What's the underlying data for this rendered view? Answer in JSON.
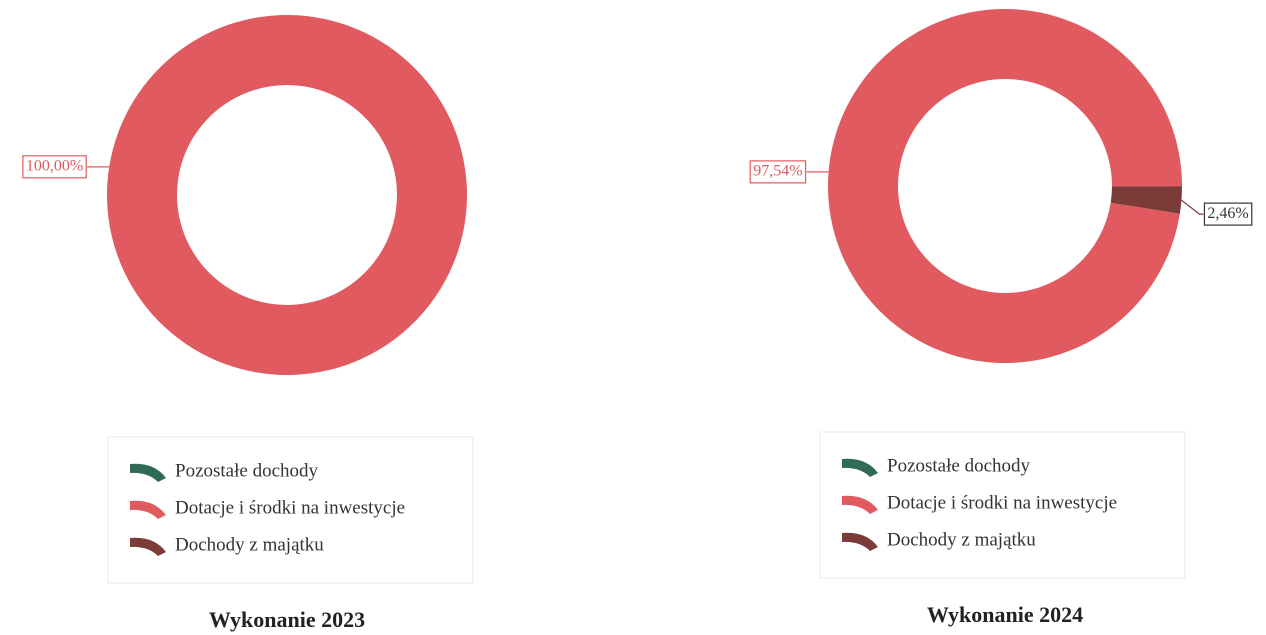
{
  "chart_data": [
    {
      "type": "donut",
      "title": "Wykonanie 2023",
      "categories": [
        "Pozostałe dochody",
        "Dotacje i środki na inwestycje",
        "Dochody z majątku"
      ],
      "values": [
        0,
        100,
        0
      ],
      "value_labels": [
        null,
        "100,00%",
        null
      ],
      "colors": [
        "#2f6b55",
        "#e05a5f",
        "#7b3c39"
      ]
    },
    {
      "type": "donut",
      "title": "Wykonanie 2024",
      "categories": [
        "Pozostałe dochody",
        "Dotacje i środki na inwestycje",
        "Dochody z majątku"
      ],
      "values": [
        0,
        97.54,
        2.46
      ],
      "value_labels": [
        null,
        "97,54%",
        "2,46%"
      ],
      "colors": [
        "#2f6b55",
        "#e05a5f",
        "#7b3c39"
      ]
    }
  ]
}
